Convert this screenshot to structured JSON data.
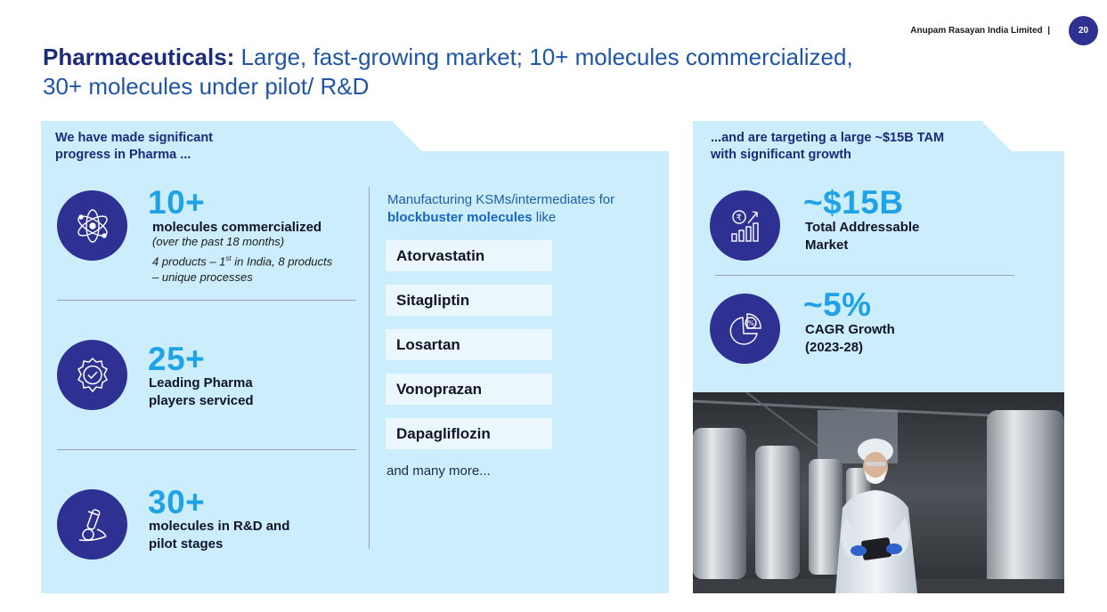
{
  "header": {
    "company": "Anupam Rasayan India Limited",
    "separator": "|",
    "page_number": "20"
  },
  "title": {
    "bold": "Pharmaceuticals:",
    "rest": " Large, fast-growing market; 10+ molecules commercialized,",
    "line2": "30+ molecules under pilot/ R&D"
  },
  "left_panel": {
    "heading_line1": "We have made significant",
    "heading_line2": "progress in Pharma ...",
    "stats": [
      {
        "icon": "molecule-atom-icon",
        "value": "10+",
        "label": "molecules commercialized",
        "sub1": "(over the past 18 months)",
        "sub2_pre": "4 products – 1",
        "sub2_sup": "st",
        "sub2_post": " in India, 8 products",
        "sub3": "– unique processes"
      },
      {
        "icon": "badge-check-icon",
        "value": "25+",
        "label_line1": "Leading Pharma",
        "label_line2": "players serviced"
      },
      {
        "icon": "test-tube-icon",
        "value": "30+",
        "label_line1": "molecules in R&D and",
        "label_line2": "pilot stages"
      }
    ],
    "mfg_heading_line1": "Manufacturing KSMs/intermediates for",
    "mfg_heading_bold": "blockbuster molecules",
    "mfg_heading_rest": " like",
    "molecules": [
      "Atorvastatin",
      "Sitagliptin",
      "Losartan",
      "Vonoprazan",
      "Dapagliflozin"
    ],
    "more": "and many more..."
  },
  "right_panel": {
    "heading_line1": "...and are targeting a large ~$15B TAM",
    "heading_line2": "with significant growth",
    "stats": [
      {
        "icon": "rupee-growth-chart-icon",
        "value": "~$15B",
        "label_line1": "Total Addressable",
        "label_line2": "Market"
      },
      {
        "icon": "percent-pie-chart-icon",
        "value": "~5%",
        "label_line1": "CAGR Growth",
        "label_line2": "(2023-28)"
      }
    ]
  },
  "colors": {
    "brand_navy": "#2e3192",
    "accent_blue": "#1fa3e6",
    "panel_bg": "#cceefc",
    "title_blue": "#1f55a6"
  }
}
